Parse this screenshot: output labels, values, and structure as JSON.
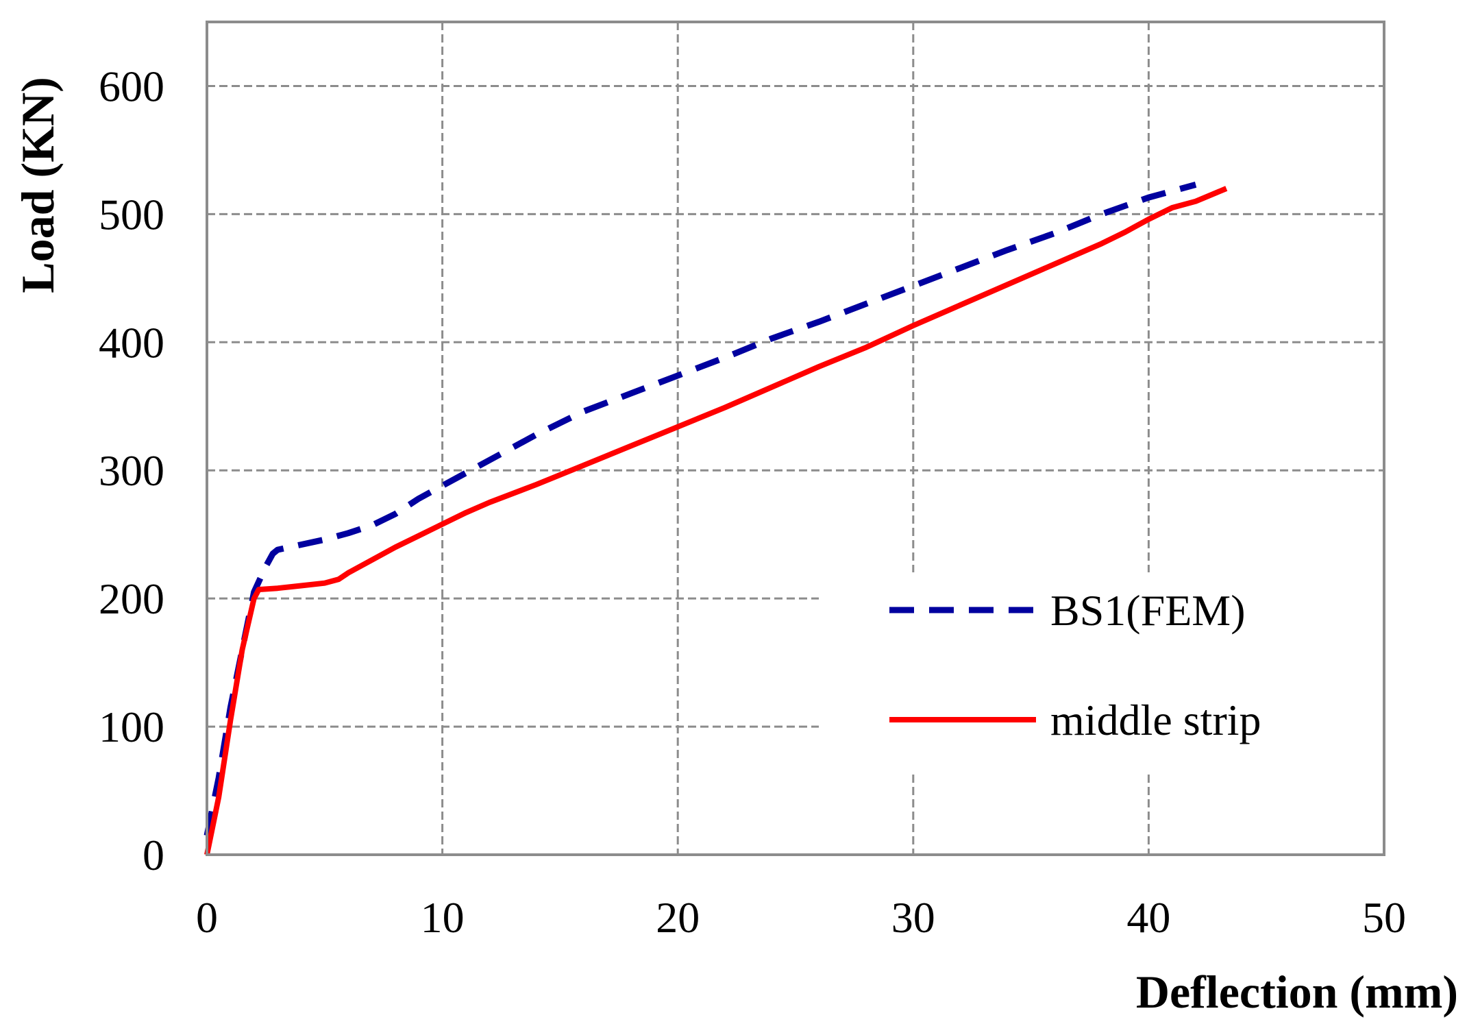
{
  "chart_data": {
    "type": "line",
    "xlabel": "Deflection (mm)",
    "ylabel": "Load (KN)",
    "xlim": [
      0,
      50
    ],
    "ylim": [
      0,
      650
    ],
    "xticks": [
      0,
      10,
      20,
      30,
      40,
      50
    ],
    "yticks": [
      0,
      100,
      200,
      300,
      400,
      500,
      600
    ],
    "grid": true,
    "legend_position": "bottom-right",
    "series": [
      {
        "name": "BS1(FEM)",
        "color": "#00009f",
        "style": "dashed",
        "x": [
          0,
          0.5,
          1.0,
          1.5,
          2.0,
          2.5,
          2.8,
          3.0,
          4.0,
          5.0,
          6.0,
          7.0,
          8.0,
          9.0,
          10.0,
          12.0,
          14.0,
          16.0,
          18.0,
          20.0,
          22.0,
          24.0,
          26.0,
          28.0,
          30.0,
          32.0,
          34.0,
          36.0,
          38.0,
          40.0,
          42.0
        ],
        "y": [
          15,
          60,
          115,
          160,
          205,
          225,
          235,
          238,
          242,
          246,
          251,
          257,
          266,
          278,
          288,
          308,
          328,
          346,
          360,
          374,
          388,
          403,
          416,
          430,
          444,
          458,
          472,
          485,
          500,
          513,
          523
        ]
      },
      {
        "name": "middle strip",
        "color": "#ff0000",
        "style": "solid",
        "x": [
          0,
          0.5,
          1.0,
          1.5,
          2.0,
          2.2,
          3.0,
          4.0,
          5.0,
          5.6,
          6.0,
          7.0,
          8.0,
          9.0,
          10.0,
          11.0,
          12.0,
          14.0,
          16.0,
          18.0,
          20.0,
          22.0,
          24.0,
          26.0,
          28.0,
          30.0,
          32.0,
          34.0,
          36.0,
          38.0,
          39.0,
          40.0,
          41.0,
          42.0,
          43.3
        ],
        "y": [
          0,
          45,
          105,
          160,
          200,
          207,
          208,
          210,
          212,
          215,
          220,
          230,
          240,
          249,
          258,
          267,
          275,
          289,
          304,
          319,
          334,
          349,
          365,
          381,
          396,
          413,
          429,
          445,
          461,
          477,
          486,
          496,
          505,
          510,
          520
        ]
      }
    ]
  }
}
